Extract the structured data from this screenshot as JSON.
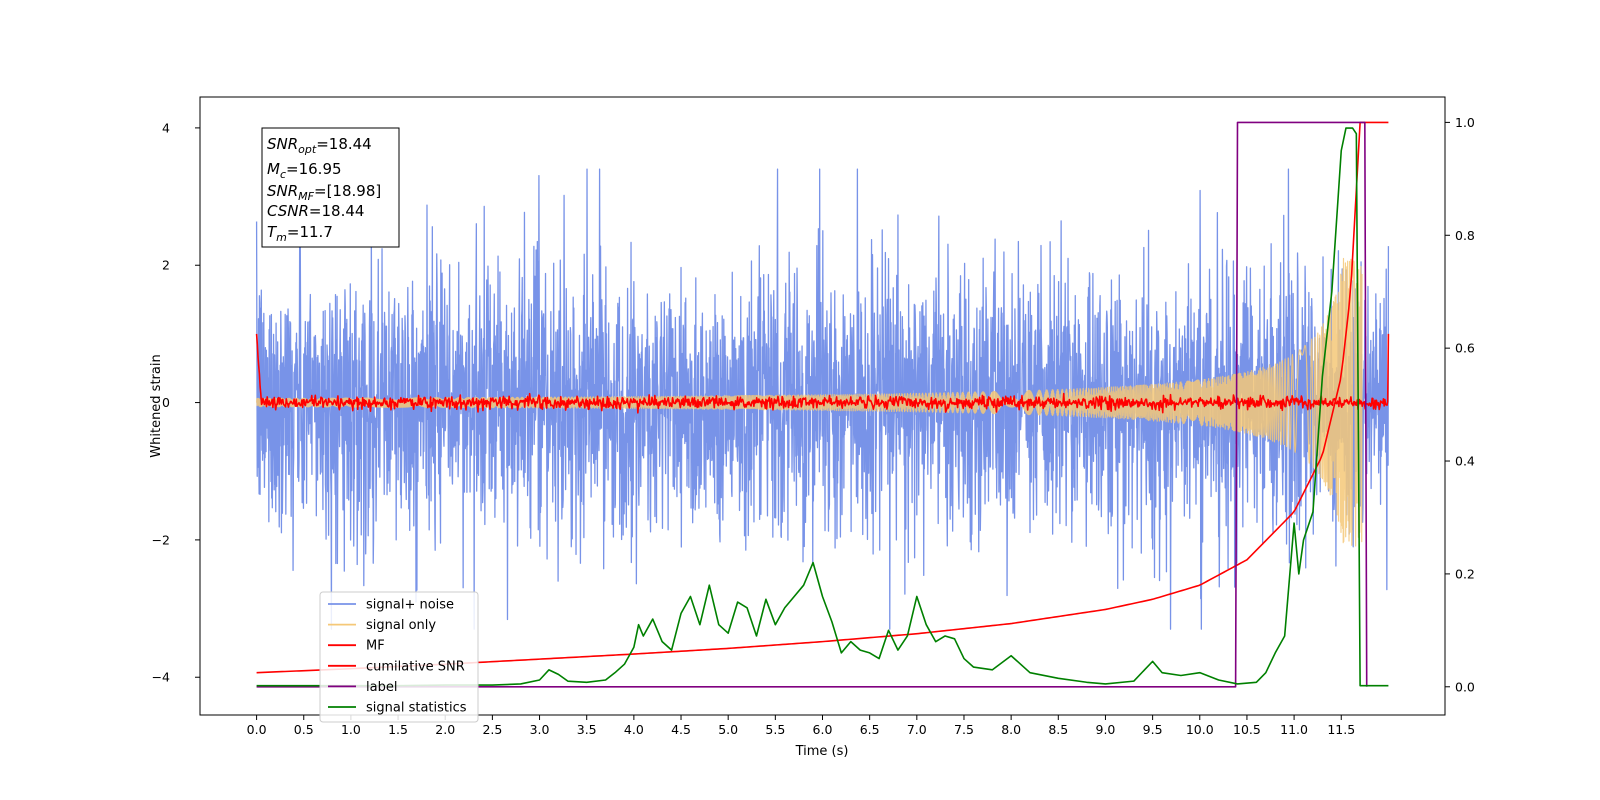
{
  "chart_data": {
    "type": "line",
    "title": "",
    "xlabel": "Time (s)",
    "ylabel": "Whitened strain",
    "xlim": [
      -0.6,
      12.6
    ],
    "ylim": [
      -4.55,
      4.45
    ],
    "y2lim": [
      -0.05,
      1.045
    ],
    "xticks": [
      0.0,
      0.5,
      1.0,
      1.5,
      2.0,
      2.5,
      3.0,
      3.5,
      4.0,
      4.5,
      5.0,
      5.5,
      6.0,
      6.5,
      7.0,
      7.5,
      8.0,
      8.5,
      9.0,
      9.5,
      10.0,
      10.5,
      11.0,
      11.5
    ],
    "xtick_labels": [
      "0.0",
      "0.5",
      "1.0",
      "1.5",
      "2.0",
      "2.5",
      "3.0",
      "3.5",
      "4.0",
      "4.5",
      "5.0",
      "5.5",
      "6.0",
      "6.5",
      "7.0",
      "7.5",
      "8.0",
      "8.5",
      "9.0",
      "9.5",
      "10.0",
      "10.5",
      "11.0",
      "11.5"
    ],
    "yticks": [
      -4,
      -2,
      0,
      2,
      4
    ],
    "ytick_labels": [
      "−4",
      "−2",
      "0",
      "2",
      "4"
    ],
    "y2ticks": [
      0.0,
      0.2,
      0.4,
      0.6,
      0.8,
      1.0
    ],
    "y2tick_labels": [
      "0.0",
      "0.2",
      "0.4",
      "0.6",
      "0.8",
      "1.0"
    ],
    "grid": false,
    "legend_position": "lower-left",
    "annotation": {
      "snr_opt": {
        "base": "SNR",
        "sub": "opt",
        "rest": "=18.44"
      },
      "mc": {
        "base": "M",
        "sub": "c",
        "rest": "=16.95"
      },
      "snr_mf": {
        "base": "SNR",
        "sub": "MF",
        "rest": "=[18.98]"
      },
      "csnr": {
        "base": "CSNR",
        "rest": "=18.44"
      },
      "tm": {
        "base": "T",
        "sub": "m",
        "rest": "=11.7"
      }
    },
    "series": [
      {
        "name": "signal+ noise",
        "color": "#7893e8",
        "axis": "left",
        "kind": "noise",
        "t_start": 0.0,
        "t_end": 12.0,
        "amplitude_typical": 1.1,
        "amplitude_peak": 3.4
      },
      {
        "name": "signal only",
        "color": "#f5c878",
        "axis": "left",
        "kind": "chirp",
        "t_start": 0.0,
        "t_end": 11.72,
        "amplitude_at_end": 2.1
      },
      {
        "name": "MF",
        "color": "#ff0000",
        "axis": "left",
        "kind": "noise_small",
        "t_start": 0.0,
        "t_end": 12.0,
        "start_value": 1.0,
        "end_value": 1.0
      },
      {
        "name": "cumilative SNR",
        "color": "#ff0000",
        "axis": "right",
        "x": [
          0.0,
          1.0,
          2.0,
          3.0,
          4.0,
          5.0,
          6.0,
          7.0,
          8.0,
          9.0,
          9.5,
          10.0,
          10.5,
          11.0,
          11.3,
          11.5,
          11.6,
          11.7,
          12.0
        ],
        "y": [
          0.025,
          0.032,
          0.04,
          0.049,
          0.058,
          0.068,
          0.08,
          0.094,
          0.112,
          0.137,
          0.155,
          0.18,
          0.225,
          0.31,
          0.41,
          0.55,
          0.7,
          1.0,
          1.0
        ]
      },
      {
        "name": "label",
        "color": "#800080",
        "axis": "right",
        "x": [
          0.0,
          10.38,
          10.4,
          11.75,
          11.77
        ],
        "y": [
          0.0,
          0.0,
          1.0,
          1.0,
          0.0
        ]
      },
      {
        "name": "signal statistics",
        "color": "#008000",
        "axis": "right",
        "x": [
          0.0,
          0.5,
          1.0,
          1.5,
          2.0,
          2.5,
          2.8,
          3.0,
          3.1,
          3.2,
          3.3,
          3.5,
          3.7,
          3.8,
          3.9,
          4.0,
          4.05,
          4.1,
          4.2,
          4.3,
          4.4,
          4.5,
          4.6,
          4.7,
          4.8,
          4.9,
          5.0,
          5.1,
          5.2,
          5.3,
          5.4,
          5.5,
          5.6,
          5.7,
          5.8,
          5.9,
          6.0,
          6.1,
          6.2,
          6.3,
          6.4,
          6.5,
          6.6,
          6.7,
          6.8,
          6.9,
          7.0,
          7.1,
          7.2,
          7.3,
          7.4,
          7.5,
          7.6,
          7.8,
          8.0,
          8.2,
          8.5,
          8.8,
          9.0,
          9.3,
          9.5,
          9.6,
          9.8,
          10.0,
          10.2,
          10.4,
          10.6,
          10.7,
          10.8,
          10.9,
          11.0,
          11.05,
          11.1,
          11.2,
          11.3,
          11.4,
          11.5,
          11.55,
          11.62,
          11.66,
          11.7,
          11.8,
          12.0
        ],
        "y": [
          0.002,
          0.002,
          0.002,
          0.002,
          0.003,
          0.003,
          0.005,
          0.012,
          0.03,
          0.022,
          0.01,
          0.008,
          0.012,
          0.025,
          0.04,
          0.07,
          0.11,
          0.09,
          0.12,
          0.08,
          0.065,
          0.13,
          0.16,
          0.11,
          0.18,
          0.11,
          0.095,
          0.15,
          0.14,
          0.09,
          0.155,
          0.11,
          0.14,
          0.16,
          0.18,
          0.22,
          0.16,
          0.115,
          0.06,
          0.08,
          0.065,
          0.06,
          0.05,
          0.1,
          0.065,
          0.09,
          0.16,
          0.11,
          0.08,
          0.09,
          0.085,
          0.05,
          0.035,
          0.03,
          0.055,
          0.025,
          0.015,
          0.008,
          0.005,
          0.01,
          0.045,
          0.025,
          0.02,
          0.025,
          0.012,
          0.005,
          0.008,
          0.025,
          0.06,
          0.09,
          0.29,
          0.2,
          0.26,
          0.31,
          0.55,
          0.7,
          0.95,
          0.99,
          0.99,
          0.98,
          0.002,
          0.002,
          0.002
        ]
      }
    ]
  }
}
